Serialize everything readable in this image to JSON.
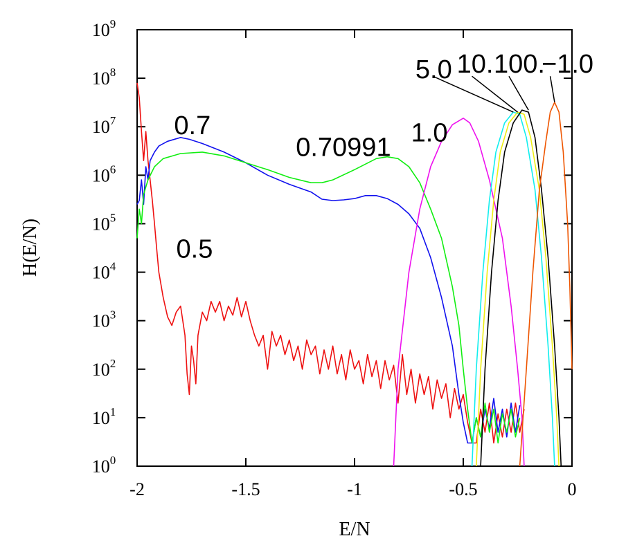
{
  "chart_data": {
    "type": "line",
    "title": "",
    "xlabel": "E/N",
    "ylabel": "H(E/N)",
    "xlim": [
      -2,
      0
    ],
    "ylim": [
      1,
      1000000000
    ],
    "yscale": "log",
    "grid": false,
    "legend": "none",
    "x_ticks": [
      {
        "value": -2,
        "label": "-2"
      },
      {
        "value": -1.5,
        "label": "-1.5"
      },
      {
        "value": -1,
        "label": "-1"
      },
      {
        "value": -0.5,
        "label": "-0.5"
      },
      {
        "value": 0,
        "label": "0"
      }
    ],
    "y_ticks": [
      {
        "value": 1,
        "base": "10",
        "exp": "0"
      },
      {
        "value": 10,
        "base": "10",
        "exp": "1"
      },
      {
        "value": 100,
        "base": "10",
        "exp": "2"
      },
      {
        "value": 1000,
        "base": "10",
        "exp": "3"
      },
      {
        "value": 10000,
        "base": "10",
        "exp": "4"
      },
      {
        "value": 100000,
        "base": "10",
        "exp": "5"
      },
      {
        "value": 1000000,
        "base": "10",
        "exp": "6"
      },
      {
        "value": 10000000,
        "base": "10",
        "exp": "7"
      },
      {
        "value": 100000000,
        "base": "10",
        "exp": "8"
      },
      {
        "value": 1000000000,
        "base": "10",
        "exp": "9"
      }
    ],
    "series": [
      {
        "label": "0.5",
        "color": "#ee1111",
        "points": [
          [
            -2.0,
            80000000
          ],
          [
            -1.99,
            40000000
          ],
          [
            -1.98,
            8000000
          ],
          [
            -1.97,
            2000000
          ],
          [
            -1.96,
            8000000
          ],
          [
            -1.95,
            2000000
          ],
          [
            -1.94,
            800000
          ],
          [
            -1.93,
            300000
          ],
          [
            -1.92,
            100000
          ],
          [
            -1.91,
            30000
          ],
          [
            -1.9,
            10000
          ],
          [
            -1.88,
            3000
          ],
          [
            -1.86,
            1200
          ],
          [
            -1.84,
            800
          ],
          [
            -1.82,
            1500
          ],
          [
            -1.8,
            2000
          ],
          [
            -1.78,
            500
          ],
          [
            -1.77,
            80
          ],
          [
            -1.76,
            30
          ],
          [
            -1.75,
            300
          ],
          [
            -1.74,
            150
          ],
          [
            -1.73,
            50
          ],
          [
            -1.72,
            500
          ],
          [
            -1.7,
            1500
          ],
          [
            -1.68,
            1000
          ],
          [
            -1.66,
            2500
          ],
          [
            -1.64,
            1500
          ],
          [
            -1.62,
            2500
          ],
          [
            -1.6,
            1000
          ],
          [
            -1.58,
            2000
          ],
          [
            -1.56,
            1300
          ],
          [
            -1.54,
            3000
          ],
          [
            -1.52,
            1200
          ],
          [
            -1.5,
            2500
          ],
          [
            -1.48,
            1000
          ],
          [
            -1.46,
            500
          ],
          [
            -1.44,
            300
          ],
          [
            -1.42,
            500
          ],
          [
            -1.4,
            100
          ],
          [
            -1.38,
            600
          ],
          [
            -1.36,
            300
          ],
          [
            -1.34,
            500
          ],
          [
            -1.32,
            200
          ],
          [
            -1.3,
            400
          ],
          [
            -1.28,
            150
          ],
          [
            -1.26,
            300
          ],
          [
            -1.24,
            100
          ],
          [
            -1.22,
            400
          ],
          [
            -1.2,
            200
          ],
          [
            -1.18,
            300
          ],
          [
            -1.16,
            80
          ],
          [
            -1.14,
            250
          ],
          [
            -1.12,
            100
          ],
          [
            -1.1,
            300
          ],
          [
            -1.08,
            80
          ],
          [
            -1.06,
            200
          ],
          [
            -1.04,
            60
          ],
          [
            -1.02,
            250
          ],
          [
            -1.0,
            100
          ],
          [
            -0.98,
            150
          ],
          [
            -0.96,
            50
          ],
          [
            -0.94,
            200
          ],
          [
            -0.92,
            70
          ],
          [
            -0.9,
            150
          ],
          [
            -0.88,
            40
          ],
          [
            -0.86,
            150
          ],
          [
            -0.84,
            60
          ],
          [
            -0.82,
            120
          ],
          [
            -0.8,
            20
          ],
          [
            -0.78,
            200
          ],
          [
            -0.76,
            30
          ],
          [
            -0.74,
            100
          ],
          [
            -0.72,
            20
          ],
          [
            -0.7,
            80
          ],
          [
            -0.68,
            30
          ],
          [
            -0.66,
            70
          ],
          [
            -0.64,
            15
          ],
          [
            -0.62,
            60
          ],
          [
            -0.6,
            25
          ],
          [
            -0.58,
            50
          ],
          [
            -0.56,
            10
          ],
          [
            -0.54,
            40
          ],
          [
            -0.52,
            15
          ],
          [
            -0.5,
            30
          ],
          [
            -0.48,
            8
          ],
          [
            -0.46,
            3
          ],
          [
            -0.44,
            3
          ],
          [
            -0.42,
            15
          ],
          [
            -0.4,
            5
          ],
          [
            -0.38,
            20
          ],
          [
            -0.36,
            3
          ],
          [
            -0.34,
            12
          ],
          [
            -0.32,
            4
          ],
          [
            -0.3,
            15
          ],
          [
            -0.28,
            5
          ],
          [
            -0.26,
            20
          ],
          [
            -0.24,
            5
          ],
          [
            -0.22,
            15
          ]
        ]
      },
      {
        "label": "0.7",
        "color": "#1111ee",
        "points": [
          [
            -2.0,
            250000
          ],
          [
            -1.99,
            300000
          ],
          [
            -1.98,
            800000
          ],
          [
            -1.97,
            250000
          ],
          [
            -1.96,
            1500000
          ],
          [
            -1.95,
            800000
          ],
          [
            -1.94,
            2000000
          ],
          [
            -1.92,
            3000000
          ],
          [
            -1.9,
            4000000
          ],
          [
            -1.86,
            5000000
          ],
          [
            -1.8,
            6000000
          ],
          [
            -1.76,
            5500000
          ],
          [
            -1.7,
            4500000
          ],
          [
            -1.6,
            3000000
          ],
          [
            -1.5,
            1800000
          ],
          [
            -1.4,
            1000000
          ],
          [
            -1.3,
            650000
          ],
          [
            -1.2,
            450000
          ],
          [
            -1.15,
            320000
          ],
          [
            -1.1,
            300000
          ],
          [
            -1.05,
            310000
          ],
          [
            -1.0,
            330000
          ],
          [
            -0.95,
            380000
          ],
          [
            -0.9,
            380000
          ],
          [
            -0.85,
            330000
          ],
          [
            -0.8,
            250000
          ],
          [
            -0.75,
            160000
          ],
          [
            -0.7,
            80000
          ],
          [
            -0.65,
            20000
          ],
          [
            -0.6,
            3000
          ],
          [
            -0.55,
            300
          ],
          [
            -0.52,
            30
          ],
          [
            -0.5,
            8
          ],
          [
            -0.48,
            3
          ],
          [
            -0.46,
            3
          ],
          [
            -0.44,
            10
          ],
          [
            -0.42,
            4
          ],
          [
            -0.4,
            15
          ],
          [
            -0.38,
            6
          ],
          [
            -0.36,
            25
          ],
          [
            -0.34,
            5
          ],
          [
            -0.32,
            15
          ],
          [
            -0.3,
            4
          ],
          [
            -0.28,
            20
          ],
          [
            -0.26,
            5
          ],
          [
            -0.24,
            18
          ]
        ]
      },
      {
        "label": "0.70991",
        "color": "#11ee11",
        "points": [
          [
            -2.0,
            50000
          ],
          [
            -1.99,
            200000
          ],
          [
            -1.98,
            100000
          ],
          [
            -1.97,
            400000
          ],
          [
            -1.95,
            800000
          ],
          [
            -1.92,
            1500000
          ],
          [
            -1.88,
            2200000
          ],
          [
            -1.8,
            2800000
          ],
          [
            -1.7,
            3000000
          ],
          [
            -1.6,
            2500000
          ],
          [
            -1.5,
            1800000
          ],
          [
            -1.4,
            1300000
          ],
          [
            -1.3,
            900000
          ],
          [
            -1.2,
            700000
          ],
          [
            -1.15,
            700000
          ],
          [
            -1.1,
            800000
          ],
          [
            -1.0,
            1300000
          ],
          [
            -0.9,
            2200000
          ],
          [
            -0.85,
            2400000
          ],
          [
            -0.8,
            2200000
          ],
          [
            -0.75,
            1500000
          ],
          [
            -0.7,
            700000
          ],
          [
            -0.65,
            200000
          ],
          [
            -0.6,
            50000
          ],
          [
            -0.55,
            5000
          ],
          [
            -0.52,
            800
          ],
          [
            -0.5,
            100
          ],
          [
            -0.48,
            15
          ],
          [
            -0.46,
            3
          ],
          [
            -0.44,
            10
          ],
          [
            -0.42,
            4
          ],
          [
            -0.4,
            20
          ],
          [
            -0.38,
            5
          ],
          [
            -0.36,
            15
          ],
          [
            -0.34,
            3
          ],
          [
            -0.32,
            12
          ],
          [
            -0.3,
            5
          ],
          [
            -0.28,
            15
          ],
          [
            -0.26,
            4
          ],
          [
            -0.24,
            10
          ]
        ]
      },
      {
        "label": "1.0",
        "color": "#ee11ee",
        "points": [
          [
            -0.82,
            1
          ],
          [
            -0.8,
            100
          ],
          [
            -0.75,
            10000
          ],
          [
            -0.7,
            200000
          ],
          [
            -0.65,
            1500000
          ],
          [
            -0.6,
            5000000
          ],
          [
            -0.55,
            11000000
          ],
          [
            -0.5,
            15000000
          ],
          [
            -0.47,
            12000000
          ],
          [
            -0.43,
            5000000
          ],
          [
            -0.38,
            800000
          ],
          [
            -0.32,
            50000
          ],
          [
            -0.28,
            2000
          ],
          [
            -0.25,
            100
          ],
          [
            -0.23,
            10
          ],
          [
            -0.22,
            1
          ]
        ]
      },
      {
        "label": "5.0",
        "color": "#11eeee",
        "points": [
          [
            -0.46,
            1
          ],
          [
            -0.44,
            100
          ],
          [
            -0.41,
            10000
          ],
          [
            -0.38,
            300000
          ],
          [
            -0.35,
            3000000
          ],
          [
            -0.31,
            12000000
          ],
          [
            -0.27,
            20000000
          ],
          [
            -0.24,
            18000000
          ],
          [
            -0.21,
            6000000
          ],
          [
            -0.17,
            500000
          ],
          [
            -0.14,
            20000
          ],
          [
            -0.11,
            300
          ],
          [
            -0.09,
            10
          ],
          [
            -0.08,
            1
          ]
        ]
      },
      {
        "label": "10.",
        "color": "#eeee11",
        "points": [
          [
            -0.44,
            1
          ],
          [
            -0.42,
            100
          ],
          [
            -0.39,
            10000
          ],
          [
            -0.36,
            300000
          ],
          [
            -0.33,
            3000000
          ],
          [
            -0.29,
            12000000
          ],
          [
            -0.25,
            20000000
          ],
          [
            -0.22,
            18000000
          ],
          [
            -0.19,
            6000000
          ],
          [
            -0.15,
            500000
          ],
          [
            -0.12,
            20000
          ],
          [
            -0.09,
            300
          ],
          [
            -0.07,
            10
          ],
          [
            -0.06,
            1
          ]
        ]
      },
      {
        "label": "100.",
        "color": "#000000",
        "points": [
          [
            -0.42,
            1
          ],
          [
            -0.4,
            100
          ],
          [
            -0.37,
            10000
          ],
          [
            -0.34,
            300000
          ],
          [
            -0.31,
            3000000
          ],
          [
            -0.27,
            12000000
          ],
          [
            -0.23,
            22000000
          ],
          [
            -0.2,
            20000000
          ],
          [
            -0.17,
            6000000
          ],
          [
            -0.14,
            500000
          ],
          [
            -0.11,
            20000
          ],
          [
            -0.08,
            300
          ],
          [
            -0.06,
            10
          ],
          [
            -0.05,
            1
          ]
        ]
      },
      {
        "label": "−1.0",
        "color": "#ee5500",
        "points": [
          [
            -0.24,
            1
          ],
          [
            -0.21,
            100
          ],
          [
            -0.18,
            10000
          ],
          [
            -0.15,
            500000
          ],
          [
            -0.12,
            5000000
          ],
          [
            -0.1,
            20000000
          ],
          [
            -0.08,
            32000000
          ],
          [
            -0.06,
            20000000
          ],
          [
            -0.04,
            3000000
          ],
          [
            -0.02,
            100000
          ],
          [
            -0.01,
            5000
          ],
          [
            0.0,
            100
          ]
        ]
      }
    ],
    "annotations": [
      {
        "text": "0.5",
        "x": -1.82,
        "y": 20000
      },
      {
        "text": "0.7",
        "x": -1.83,
        "y": 7000000
      },
      {
        "text": "0.70991",
        "x": -1.27,
        "y": 2500000
      },
      {
        "text": "1.0",
        "x": -0.74,
        "y": 5000000
      },
      {
        "text": "5.0",
        "x": -0.72,
        "y": 100000000
      },
      {
        "text": "10.",
        "x": -0.53,
        "y": 130000000
      },
      {
        "text": "100.",
        "x": -0.36,
        "y": 130000000
      },
      {
        "text": "−1.0",
        "x": -0.14,
        "y": 130000000
      }
    ],
    "pointer_lines": [
      {
        "from": [
          -0.64,
          110000000
        ],
        "to": [
          -0.27,
          20000000
        ]
      },
      {
        "from": [
          -0.46,
          110000000
        ],
        "to": [
          -0.25,
          20000000
        ]
      },
      {
        "from": [
          -0.29,
          110000000
        ],
        "to": [
          -0.2,
          22000000
        ]
      },
      {
        "from": [
          -0.1,
          110000000
        ],
        "to": [
          -0.08,
          32000000
        ]
      }
    ]
  }
}
